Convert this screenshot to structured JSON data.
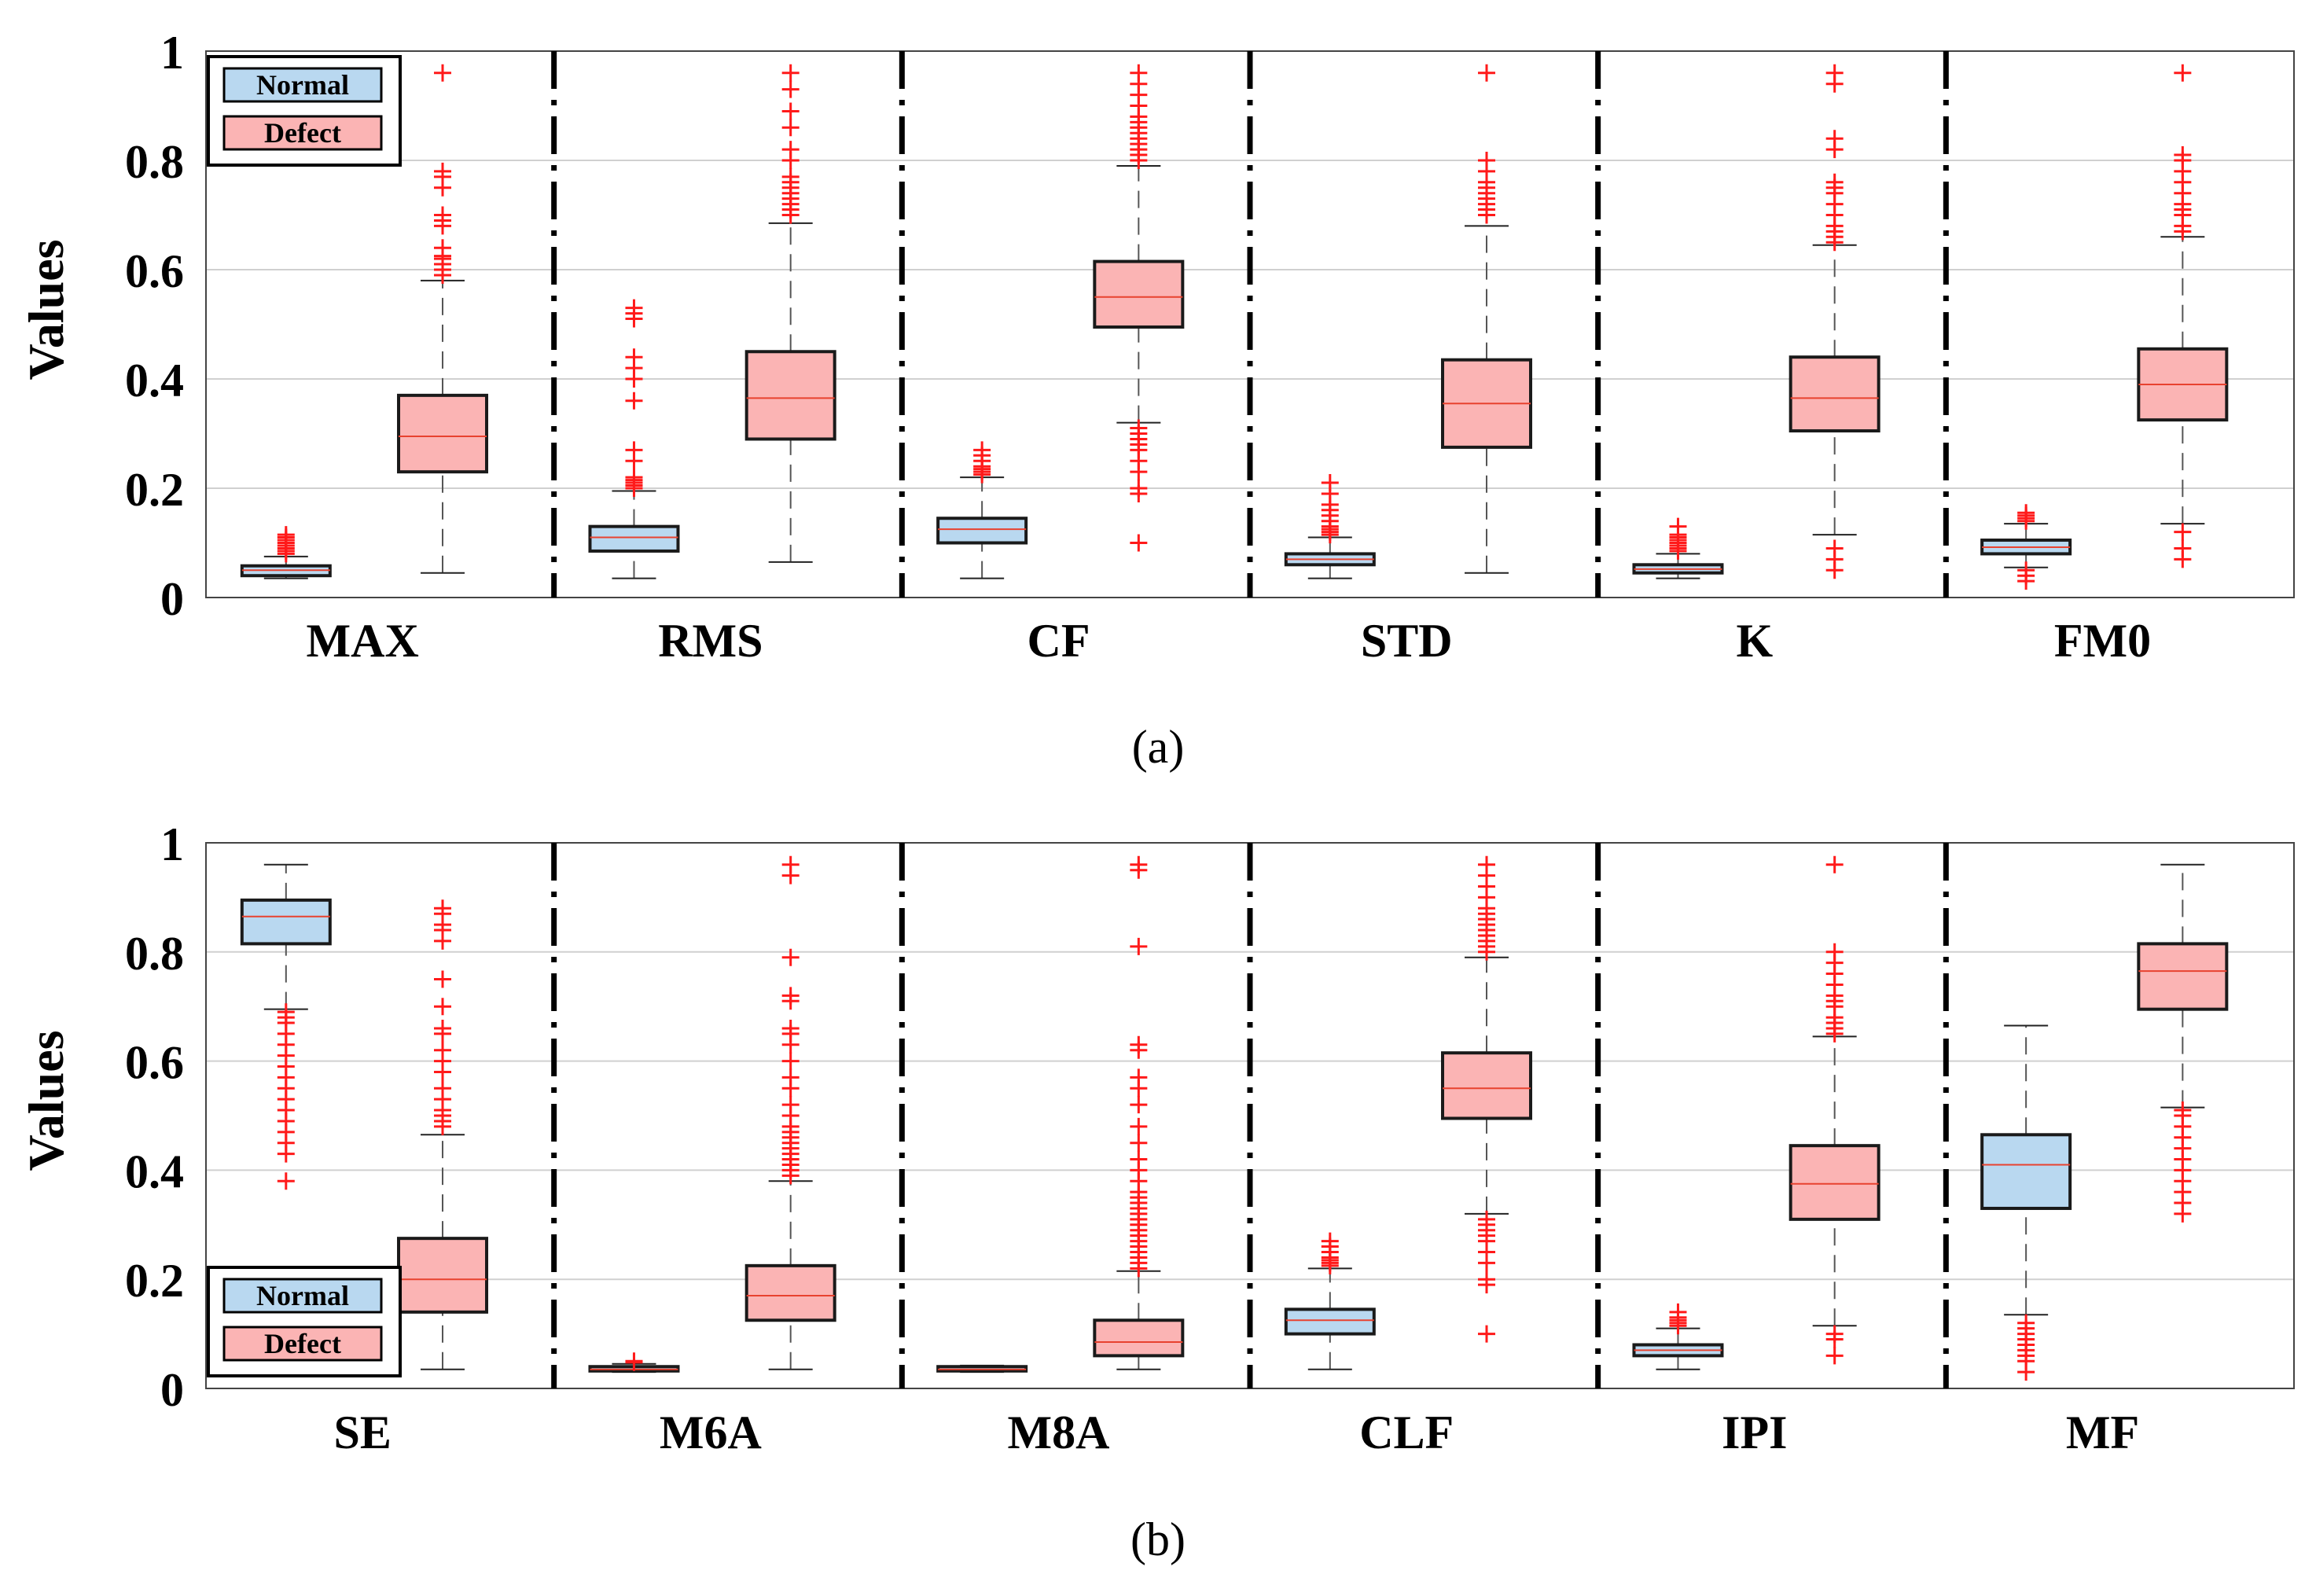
{
  "figure": {
    "panels": [
      {
        "label": "(a)",
        "ylabel": "Values"
      },
      {
        "label": "(b)",
        "ylabel": "Values"
      }
    ],
    "legend": {
      "normal_label": "Normal",
      "defect_label": "Defect"
    },
    "colors": {
      "normal_fill": "#b9d8f0",
      "defect_fill": "#fbb4b4",
      "median": "#e8422f",
      "outlier": "#ff1a1a",
      "whisker": "#555555",
      "grid": "#d0d0d0",
      "separator": "#000000"
    }
  },
  "chart_data": [
    {
      "type": "boxplot",
      "panel": "(a)",
      "ylabel": "Values",
      "ylim": [
        0,
        1
      ],
      "yticks": [
        0,
        0.2,
        0.4,
        0.6,
        0.8,
        1
      ],
      "ytick_labels": [
        "0",
        "0.2",
        "0.4",
        "0.6",
        "0.8",
        "1"
      ],
      "grid": true,
      "legend_position": "top-left",
      "series": [
        "Normal",
        "Defect"
      ],
      "categories": [
        {
          "name": "MAX",
          "normal": {
            "min": 0.035,
            "q1": 0.04,
            "median": 0.05,
            "q3": 0.058,
            "max": 0.075,
            "outliers": [
              0.08,
              0.085,
              0.09,
              0.095,
              0.1,
              0.105,
              0.11,
              0.115
            ]
          },
          "defect": {
            "min": 0.045,
            "q1": 0.23,
            "median": 0.295,
            "q3": 0.37,
            "max": 0.58,
            "outliers": [
              0.59,
              0.6,
              0.61,
              0.62,
              0.625,
              0.64,
              0.68,
              0.69,
              0.7,
              0.75,
              0.77,
              0.78,
              0.96
            ]
          }
        },
        {
          "name": "RMS",
          "normal": {
            "min": 0.035,
            "q1": 0.085,
            "median": 0.11,
            "q3": 0.13,
            "max": 0.195,
            "outliers": [
              0.2,
              0.205,
              0.21,
              0.215,
              0.22,
              0.25,
              0.27,
              0.36,
              0.4,
              0.42,
              0.44,
              0.51,
              0.52,
              0.53
            ]
          },
          "defect": {
            "min": 0.065,
            "q1": 0.29,
            "median": 0.365,
            "q3": 0.45,
            "max": 0.685,
            "outliers": [
              0.7,
              0.71,
              0.72,
              0.73,
              0.74,
              0.75,
              0.76,
              0.77,
              0.8,
              0.82,
              0.86,
              0.89,
              0.93,
              0.96
            ]
          }
        },
        {
          "name": "CF",
          "normal": {
            "min": 0.035,
            "q1": 0.1,
            "median": 0.125,
            "q3": 0.145,
            "max": 0.22,
            "outliers": [
              0.225,
              0.23,
              0.235,
              0.24,
              0.25,
              0.26,
              0.27
            ]
          },
          "defect": {
            "min": 0.32,
            "q1": 0.495,
            "median": 0.55,
            "q3": 0.615,
            "max": 0.79,
            "outliers": [
              0.1,
              0.19,
              0.2,
              0.23,
              0.25,
              0.27,
              0.28,
              0.29,
              0.3,
              0.31,
              0.8,
              0.81,
              0.82,
              0.83,
              0.84,
              0.85,
              0.86,
              0.87,
              0.88,
              0.9,
              0.92,
              0.94,
              0.96
            ]
          }
        },
        {
          "name": "STD",
          "normal": {
            "min": 0.035,
            "q1": 0.06,
            "median": 0.07,
            "q3": 0.08,
            "max": 0.11,
            "outliers": [
              0.115,
              0.12,
              0.125,
              0.13,
              0.14,
              0.15,
              0.16,
              0.17,
              0.19,
              0.21
            ]
          },
          "defect": {
            "min": 0.045,
            "q1": 0.275,
            "median": 0.355,
            "q3": 0.435,
            "max": 0.68,
            "outliers": [
              0.7,
              0.71,
              0.72,
              0.73,
              0.74,
              0.75,
              0.76,
              0.78,
              0.8,
              0.96
            ]
          }
        },
        {
          "name": "K",
          "normal": {
            "min": 0.035,
            "q1": 0.045,
            "median": 0.052,
            "q3": 0.06,
            "max": 0.08,
            "outliers": [
              0.085,
              0.09,
              0.095,
              0.1,
              0.105,
              0.11,
              0.115,
              0.13
            ]
          },
          "defect": {
            "min": 0.115,
            "q1": 0.305,
            "median": 0.365,
            "q3": 0.44,
            "max": 0.645,
            "outliers": [
              0.05,
              0.07,
              0.09,
              0.65,
              0.66,
              0.67,
              0.68,
              0.7,
              0.72,
              0.74,
              0.75,
              0.76,
              0.82,
              0.84,
              0.94,
              0.96
            ]
          }
        },
        {
          "name": "FM0",
          "normal": {
            "min": 0.055,
            "q1": 0.08,
            "median": 0.092,
            "q3": 0.105,
            "max": 0.135,
            "outliers": [
              0.03,
              0.04,
              0.05,
              0.14,
              0.145,
              0.15,
              0.155
            ]
          },
          "defect": {
            "min": 0.135,
            "q1": 0.325,
            "median": 0.39,
            "q3": 0.455,
            "max": 0.66,
            "outliers": [
              0.07,
              0.09,
              0.12,
              0.67,
              0.68,
              0.7,
              0.71,
              0.72,
              0.74,
              0.76,
              0.78,
              0.8,
              0.81,
              0.96
            ]
          }
        }
      ]
    },
    {
      "type": "boxplot",
      "panel": "(b)",
      "ylabel": "Values",
      "ylim": [
        0,
        1
      ],
      "yticks": [
        0,
        0.2,
        0.4,
        0.6,
        0.8,
        1
      ],
      "ytick_labels": [
        "0",
        "0.2",
        "0.4",
        "0.6",
        "0.8",
        "1"
      ],
      "grid": true,
      "legend_position": "bottom-left",
      "series": [
        "Normal",
        "Defect"
      ],
      "categories": [
        {
          "name": "SE",
          "normal": {
            "min": 0.695,
            "q1": 0.815,
            "median": 0.865,
            "q3": 0.895,
            "max": 0.96,
            "outliers": [
              0.38,
              0.43,
              0.45,
              0.47,
              0.49,
              0.51,
              0.53,
              0.55,
              0.57,
              0.59,
              0.61,
              0.63,
              0.65,
              0.67,
              0.68,
              0.69
            ]
          },
          "defect": {
            "min": 0.035,
            "q1": 0.14,
            "median": 0.2,
            "q3": 0.275,
            "max": 0.465,
            "outliers": [
              0.48,
              0.49,
              0.5,
              0.51,
              0.53,
              0.55,
              0.58,
              0.6,
              0.62,
              0.65,
              0.66,
              0.7,
              0.75,
              0.82,
              0.84,
              0.85,
              0.87,
              0.88
            ]
          }
        },
        {
          "name": "M6A",
          "normal": {
            "min": 0.03,
            "q1": 0.032,
            "median": 0.035,
            "q3": 0.04,
            "max": 0.045,
            "outliers": [
              0.048,
              0.05
            ]
          },
          "defect": {
            "min": 0.035,
            "q1": 0.125,
            "median": 0.17,
            "q3": 0.225,
            "max": 0.38,
            "outliers": [
              0.39,
              0.4,
              0.41,
              0.42,
              0.43,
              0.44,
              0.45,
              0.46,
              0.47,
              0.48,
              0.5,
              0.52,
              0.55,
              0.57,
              0.6,
              0.63,
              0.65,
              0.66,
              0.71,
              0.72,
              0.79,
              0.94,
              0.96
            ]
          }
        },
        {
          "name": "M8A",
          "normal": {
            "min": 0.03,
            "q1": 0.032,
            "median": 0.035,
            "q3": 0.04,
            "max": 0.042,
            "outliers": []
          },
          "defect": {
            "min": 0.035,
            "q1": 0.06,
            "median": 0.085,
            "q3": 0.125,
            "max": 0.215,
            "outliers": [
              0.22,
              0.23,
              0.24,
              0.25,
              0.26,
              0.27,
              0.28,
              0.29,
              0.3,
              0.31,
              0.32,
              0.33,
              0.34,
              0.35,
              0.36,
              0.38,
              0.4,
              0.42,
              0.45,
              0.48,
              0.52,
              0.55,
              0.57,
              0.62,
              0.63,
              0.81,
              0.95,
              0.96
            ]
          }
        },
        {
          "name": "CLF",
          "normal": {
            "min": 0.035,
            "q1": 0.1,
            "median": 0.125,
            "q3": 0.145,
            "max": 0.22,
            "outliers": [
              0.225,
              0.23,
              0.235,
              0.24,
              0.25,
              0.26,
              0.27
            ]
          },
          "defect": {
            "min": 0.32,
            "q1": 0.495,
            "median": 0.55,
            "q3": 0.615,
            "max": 0.79,
            "outliers": [
              0.1,
              0.19,
              0.2,
              0.23,
              0.25,
              0.27,
              0.28,
              0.29,
              0.3,
              0.31,
              0.8,
              0.81,
              0.82,
              0.83,
              0.84,
              0.85,
              0.86,
              0.87,
              0.88,
              0.9,
              0.92,
              0.94,
              0.96
            ]
          }
        },
        {
          "name": "IPI",
          "normal": {
            "min": 0.035,
            "q1": 0.06,
            "median": 0.07,
            "q3": 0.08,
            "max": 0.11,
            "outliers": [
              0.115,
              0.12,
              0.125,
              0.13,
              0.14
            ]
          },
          "defect": {
            "min": 0.115,
            "q1": 0.31,
            "median": 0.375,
            "q3": 0.445,
            "max": 0.645,
            "outliers": [
              0.06,
              0.09,
              0.1,
              0.65,
              0.66,
              0.67,
              0.68,
              0.7,
              0.71,
              0.72,
              0.74,
              0.76,
              0.78,
              0.8,
              0.96
            ]
          }
        },
        {
          "name": "MF",
          "normal": {
            "min": 0.135,
            "q1": 0.33,
            "median": 0.41,
            "q3": 0.465,
            "max": 0.665,
            "outliers": [
              0.03,
              0.05,
              0.06,
              0.07,
              0.08,
              0.09,
              0.1,
              0.11,
              0.12
            ]
          },
          "defect": {
            "min": 0.515,
            "q1": 0.695,
            "median": 0.765,
            "q3": 0.815,
            "max": 0.96,
            "outliers": [
              0.32,
              0.34,
              0.36,
              0.38,
              0.4,
              0.42,
              0.44,
              0.46,
              0.48,
              0.5,
              0.51
            ]
          }
        }
      ]
    }
  ]
}
